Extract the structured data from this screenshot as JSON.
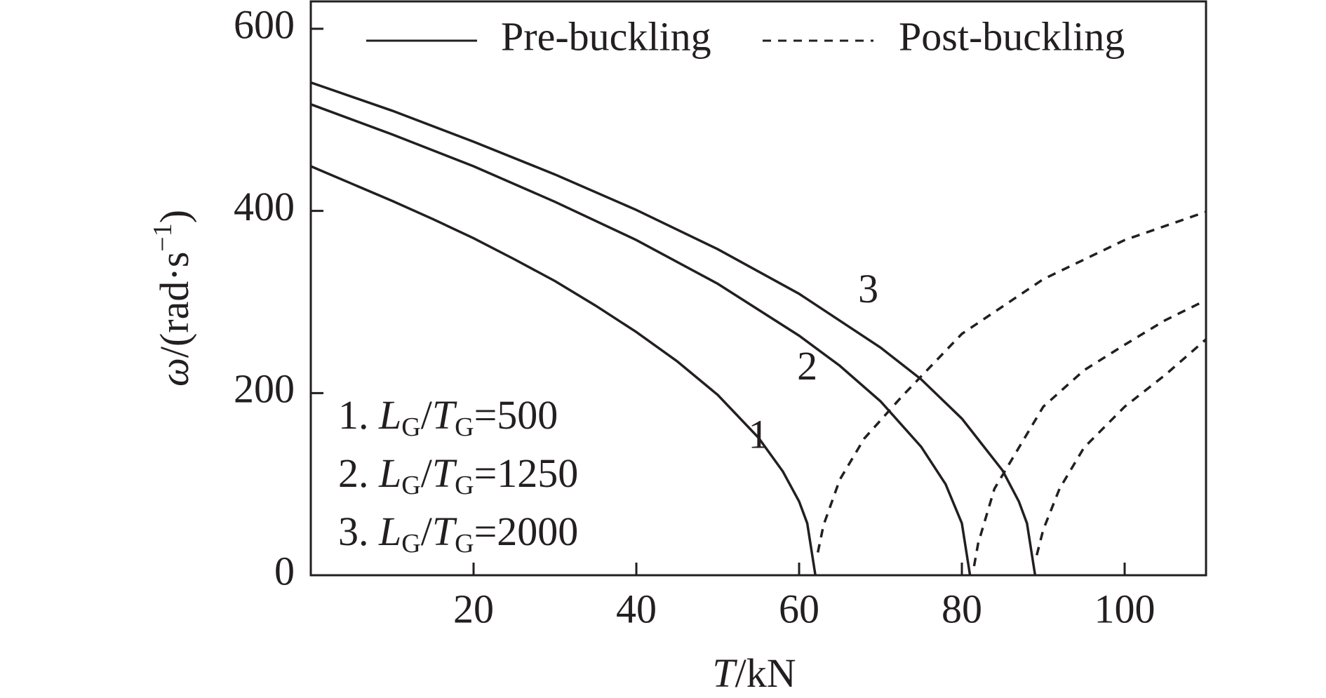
{
  "chart_data": {
    "type": "line",
    "xlabel": [
      "T",
      "/kN"
    ],
    "ylabel": [
      "ω",
      "/(rad·s",
      "−1",
      ")"
    ],
    "xlim": [
      0,
      110
    ],
    "ylim": [
      0,
      630
    ],
    "xticks": [
      20,
      40,
      60,
      80,
      100
    ],
    "yticks": [
      0,
      200,
      400,
      600
    ],
    "legend": [
      {
        "label": "Pre-buckling",
        "dashed": false
      },
      {
        "label": "Post-buckling",
        "dashed": true
      }
    ],
    "key": [
      [
        "1. ",
        "L",
        "G",
        "/",
        "T",
        "G",
        "=500"
      ],
      [
        "2. ",
        "L",
        "G",
        "/",
        "T",
        "G",
        "=1250"
      ],
      [
        "3. ",
        "L",
        "G",
        "/",
        "T",
        "G",
        "=2000"
      ]
    ],
    "series": [
      {
        "name": "1",
        "dashed": false,
        "color": "#231f20",
        "label_at": [
          55,
          150
        ],
        "x": [
          0,
          5,
          10,
          15,
          20,
          25,
          30,
          35,
          40,
          45,
          50,
          55,
          58,
          60,
          61,
          62
        ],
        "values": [
          449,
          430,
          411,
          391,
          370,
          347,
          323,
          296,
          267,
          235,
          198,
          151,
          114,
          81,
          57,
          0
        ]
      },
      {
        "name": "2",
        "dashed": false,
        "color": "#231f20",
        "label_at": [
          61,
          225
        ],
        "x": [
          0,
          10,
          20,
          30,
          40,
          50,
          60,
          65,
          70,
          75,
          78,
          80,
          81
        ],
        "values": [
          517,
          484,
          449,
          410,
          368,
          320,
          263,
          230,
          191,
          141,
          100,
          57,
          0
        ]
      },
      {
        "name": "3",
        "dashed": false,
        "color": "#231f20",
        "label_at": [
          68.5,
          310
        ],
        "x": [
          0,
          10,
          20,
          30,
          40,
          50,
          60,
          70,
          75,
          80,
          85,
          87,
          88,
          89
        ],
        "values": [
          541,
          510,
          476,
          440,
          401,
          358,
          309,
          250,
          215,
          172,
          115,
          81,
          57,
          0
        ]
      },
      {
        "dashed": true,
        "color": "#231f20",
        "x": [
          62.3,
          63,
          65,
          68,
          72.6,
          80,
          90,
          100,
          110
        ],
        "values": [
          25,
          55,
          105,
          150,
          196,
          265,
          325,
          368,
          399
        ]
      },
      {
        "dashed": true,
        "color": "#231f20",
        "x": [
          81.5,
          82,
          84,
          87,
          90,
          95,
          100,
          105,
          110
        ],
        "values": [
          10,
          35,
          95,
          140,
          185,
          225,
          253,
          280,
          302
        ]
      },
      {
        "dashed": true,
        "color": "#231f20",
        "x": [
          89.2,
          90,
          92,
          95,
          100,
          105,
          110
        ],
        "values": [
          22,
          50,
          95,
          140,
          185,
          220,
          259
        ]
      }
    ]
  }
}
